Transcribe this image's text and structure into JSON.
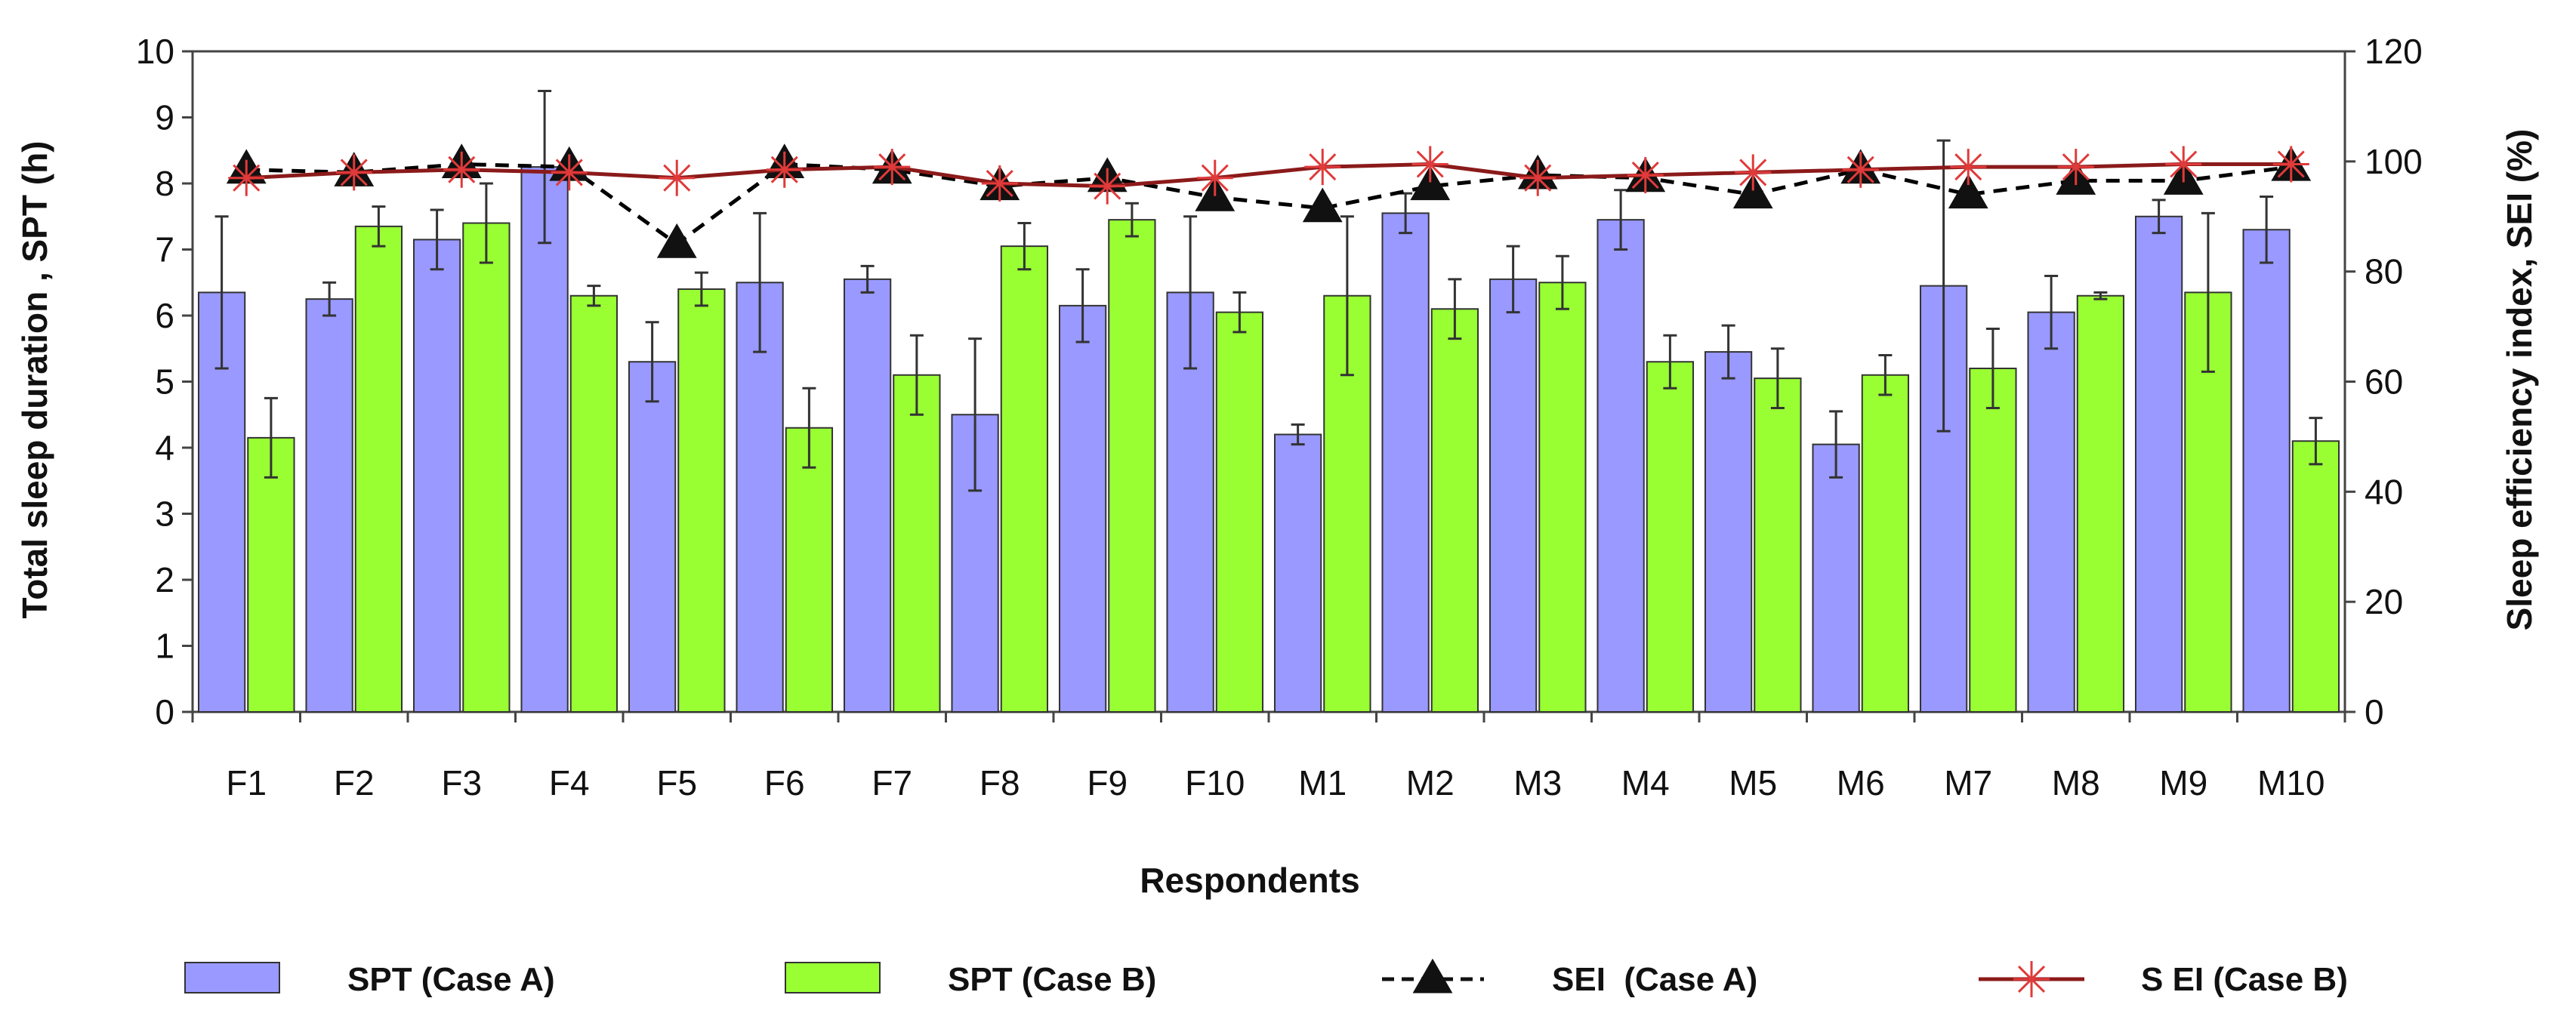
{
  "chart_data": {
    "type": "bar",
    "title": "",
    "xlabel": "Respondents",
    "ylabel_left": "Total sleep duration , SPT (h)",
    "ylabel_right": "Sleep efficiency index, SEI (%)",
    "ylim_left": [
      0,
      10
    ],
    "ylim_right": [
      0,
      120
    ],
    "left_ticks": [
      "0",
      "1",
      "2",
      "3",
      "4",
      "5",
      "6",
      "7",
      "8",
      "9",
      "10"
    ],
    "right_ticks": [
      "0",
      "20",
      "40",
      "60",
      "80",
      "100",
      "120"
    ],
    "categories": [
      "F1",
      "F2",
      "F3",
      "F4",
      "F5",
      "F6",
      "F7",
      "F8",
      "F9",
      "F10",
      "M1",
      "M2",
      "M3",
      "M4",
      "M5",
      "M6",
      "M7",
      "M8",
      "M9",
      "M10"
    ],
    "series": [
      {
        "name": "SPT (Case A)",
        "kind": "bar",
        "axis": "left",
        "color": "#9999ff",
        "values": [
          6.35,
          6.25,
          7.15,
          8.25,
          5.3,
          6.5,
          6.55,
          4.5,
          6.15,
          6.35,
          4.2,
          7.55,
          6.55,
          7.45,
          5.45,
          4.05,
          6.45,
          6.05,
          7.5,
          7.3
        ],
        "errors": [
          1.15,
          0.25,
          0.45,
          1.15,
          0.6,
          1.05,
          0.2,
          1.15,
          0.55,
          1.15,
          0.15,
          0.3,
          0.5,
          0.45,
          0.4,
          0.5,
          2.2,
          0.55,
          0.25,
          0.5
        ]
      },
      {
        "name": "SPT (Case B)",
        "kind": "bar",
        "axis": "left",
        "color": "#99ff33",
        "values": [
          4.15,
          7.35,
          7.4,
          6.3,
          6.4,
          4.3,
          5.1,
          7.05,
          7.45,
          6.05,
          6.3,
          6.1,
          6.5,
          5.3,
          5.05,
          5.1,
          5.2,
          6.3,
          6.35,
          4.1
        ],
        "errors": [
          0.6,
          0.3,
          0.6,
          0.15,
          0.25,
          0.6,
          0.6,
          0.35,
          0.25,
          0.3,
          1.2,
          0.45,
          0.4,
          0.4,
          0.45,
          0.3,
          0.6,
          0.05,
          1.2,
          0.35
        ]
      },
      {
        "name": "SEI  (Case A)",
        "kind": "line",
        "axis": "right",
        "color": "#000000",
        "marker": "triangle",
        "values": [
          98.5,
          98,
          99.5,
          99,
          85,
          99.5,
          98.5,
          95.5,
          97,
          93.5,
          91.5,
          95.5,
          97.5,
          97,
          94,
          98.5,
          94,
          96.5,
          96.5,
          99
        ]
      },
      {
        "name": "S EI (Case B)",
        "kind": "line",
        "axis": "right",
        "color": "#8b1a1a",
        "marker": "star",
        "values": [
          97,
          98,
          98.5,
          98,
          97,
          98.5,
          99,
          96,
          95.5,
          97,
          99,
          99.5,
          97,
          97.5,
          98,
          98.5,
          99,
          99,
          99.5,
          99.5
        ]
      }
    ],
    "legend_position": "bottom"
  }
}
